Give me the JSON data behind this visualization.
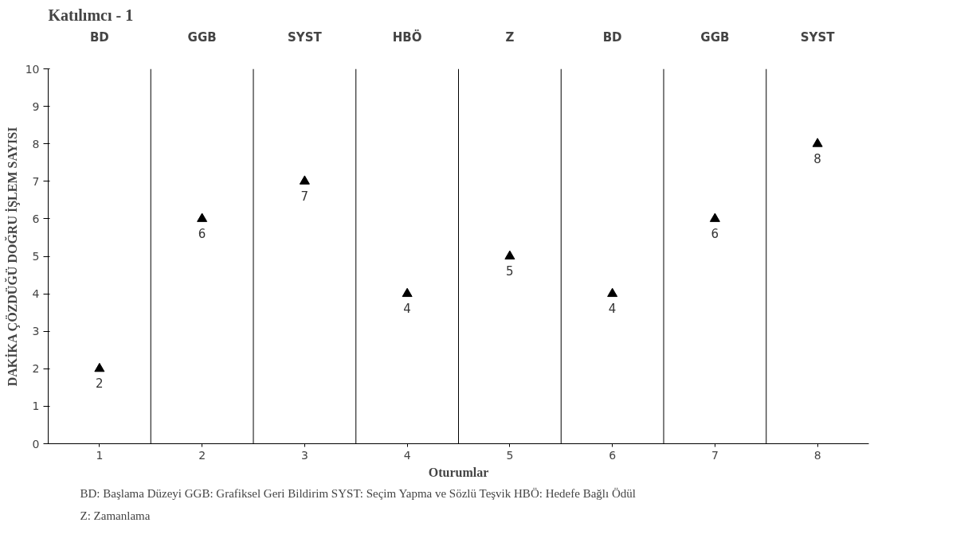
{
  "chart_data": {
    "type": "scatter",
    "title": "Katılımcı - 1",
    "xlabel": "Oturumlar",
    "ylabel": "DAKİKA ÇÖZDÜĞÜ DOĞRU İŞLEM SAYISI",
    "x": [
      1,
      2,
      3,
      4,
      5,
      6,
      7,
      8
    ],
    "series": [
      {
        "color": "#000000",
        "values": [
          2,
          6,
          7,
          4,
          5,
          4,
          6,
          8
        ]
      }
    ],
    "xlim": [
      0.5,
      8.5
    ],
    "xticks": [
      1,
      2,
      3,
      4,
      5,
      6,
      7,
      8
    ],
    "ylim": [
      0,
      10
    ],
    "yticks": [
      0,
      1,
      2,
      3,
      4,
      5,
      6,
      7,
      8,
      9,
      10
    ],
    "ref_lines": [
      {
        "axis": "x",
        "value": 1.5,
        "label": null,
        "color": "#000000"
      },
      {
        "axis": "x",
        "value": 2.5,
        "label": null,
        "color": "#000000"
      },
      {
        "axis": "x",
        "value": 3.5,
        "label": null,
        "color": "#000000"
      },
      {
        "axis": "x",
        "value": 4.5,
        "label": null,
        "color": "#000000"
      },
      {
        "axis": "x",
        "value": 5.5,
        "label": null,
        "color": "#000000"
      },
      {
        "axis": "x",
        "value": 6.5,
        "label": null,
        "color": "#000000"
      },
      {
        "axis": "x",
        "value": 7.5,
        "label": null,
        "color": "#000000"
      }
    ],
    "annotations": [
      "BD",
      "GGB",
      "SYST",
      "HBÖ",
      "Z",
      "BD",
      "GGB",
      "SYST",
      "BD: Başlama Düzeyi  GGB: Grafiksel Geri Bildirim  SYST: Seçim Yapma ve Sözlü Teşvik  HBÖ: Hedefe Bağlı Ödül",
      "Z: Zamanlama"
    ],
    "data_labels": true,
    "marker": "triangle",
    "grid": false
  }
}
